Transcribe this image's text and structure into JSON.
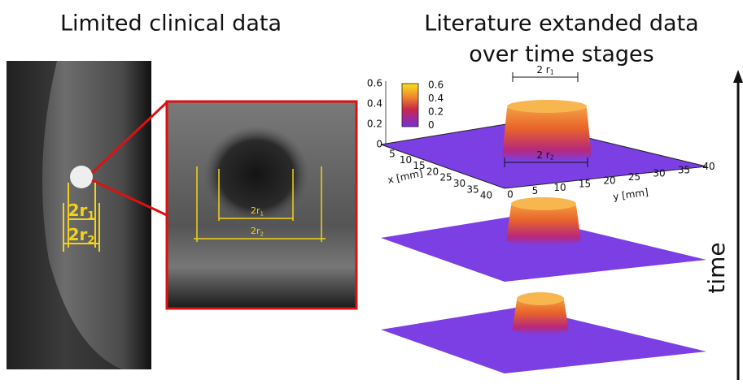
{
  "left_panel": {
    "title": "Limited clinical data",
    "mammogram_labels": [
      {
        "main": "2r",
        "sub": "1"
      },
      {
        "main": "2r",
        "sub": "2"
      }
    ],
    "ultrasound_labels": [
      {
        "main": "2r",
        "sub": "1"
      },
      {
        "main": "2r",
        "sub": "2"
      }
    ]
  },
  "right_panel": {
    "title_lines": [
      "Literature extanded data",
      "over time stages"
    ],
    "colorbar_ticks": [
      0.6,
      0.4,
      0.2,
      0
    ],
    "z_ticks": [
      0.6,
      0.4,
      0.2,
      0
    ],
    "x_ticks": [
      5,
      10,
      15,
      20,
      25,
      30,
      35,
      40
    ],
    "x_label": "x [mm]",
    "y_ticks": [
      0,
      5,
      10,
      15,
      20,
      25,
      30,
      35,
      40
    ],
    "y_label": "y [mm]",
    "dims": [
      {
        "main": "2 r",
        "sub": "1"
      },
      {
        "main": "2 r",
        "sub": "2"
      }
    ],
    "time_label": "time"
  }
}
